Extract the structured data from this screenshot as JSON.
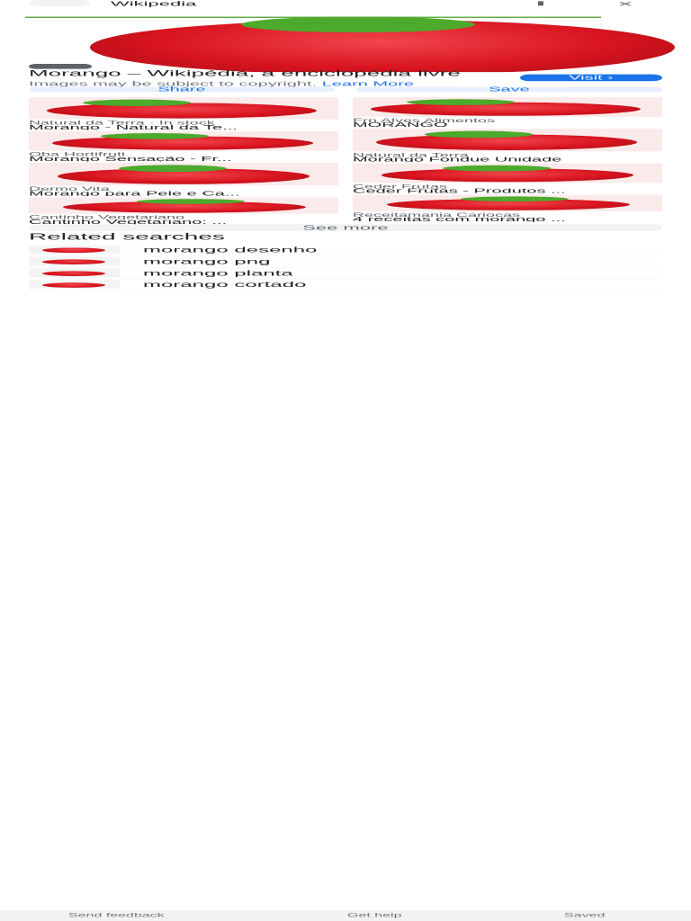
{
  "header": {
    "title": "Wikipedia"
  },
  "result": {
    "title": "Morango – Wikipédia, a enciclopédia livre",
    "copyright": "Images may be subject to copyright.",
    "learn_more": "Learn More",
    "visit": "Visit",
    "share": "Share",
    "save": "Save"
  },
  "similar": {
    "left": [
      {
        "source": "Natural da Terra · In stock",
        "title": "Morango - Natural da Te..."
      },
      {
        "source": "Oba Hortifruti",
        "title": "Morango Sensação - Fr..."
      },
      {
        "source": "Dermo Vita",
        "title": "Morango para Pele e Ca..."
      },
      {
        "source": "Cantinho Vegetariano",
        "title": "Cantinho Vegetariano: ..."
      }
    ],
    "right": [
      {
        "source": "Frn Alves Alimentos",
        "title": "MORANGO"
      },
      {
        "source": "Natural da Terra",
        "title": "Morango Fondue Unidade"
      },
      {
        "source": "Ceder Frutas",
        "title": "Ceder Frutas - Produtos ..."
      },
      {
        "source": "Receitamania Cariocas",
        "title": "4 receitas com morango ..."
      }
    ]
  },
  "see_more": "See more",
  "related": {
    "title": "Related searches",
    "items": [
      "morango desenho",
      "morango png",
      "morango planta",
      "morango cortado"
    ]
  },
  "footer": {
    "links": [
      "Send feedback",
      "Get help",
      "Saved"
    ]
  }
}
